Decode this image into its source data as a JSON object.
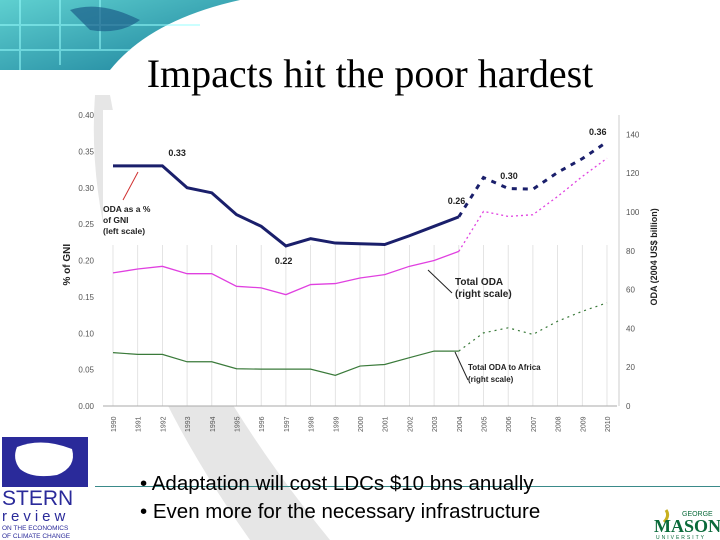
{
  "slide": {
    "title": "Impacts hit the poor hardest",
    "bullets": [
      "Adaptation will cost LDCs $10 bns anually",
      "Even more for the necessary infrastructure"
    ],
    "logos": {
      "left": "STERN review ON THE ECONOMICS OF CLIMATE CHANGE",
      "right": "GEORGE MASON UNIVERSITY"
    }
  },
  "chart_data": {
    "type": "line",
    "x": [
      1990,
      1991,
      1992,
      1993,
      1994,
      1995,
      1996,
      1997,
      1998,
      1999,
      2000,
      2001,
      2002,
      2003,
      2004,
      2005,
      2006,
      2007,
      2008,
      2009,
      2010
    ],
    "x_tick_labels": [
      "1990",
      "1991",
      "1992",
      "1993",
      "1994",
      "1995",
      "1996",
      "1997",
      "1998",
      "1999",
      "2000",
      "2001",
      "2002",
      "2003",
      "2004",
      "2005",
      "2006",
      "2007",
      "2008",
      "2009",
      "2010"
    ],
    "ylabel_left": "% of GNI",
    "ylabel_right": "ODA (2004 US$ billion)",
    "ylim_left": [
      0,
      0.4
    ],
    "ylim_right": [
      0,
      150
    ],
    "yticks_left": [
      "0.00",
      "0.05",
      "0.10",
      "0.15",
      "0.20",
      "0.25",
      "0.30",
      "0.35",
      "0.40"
    ],
    "yticks_right": [
      "0",
      "20",
      "40",
      "60",
      "80",
      "100",
      "120",
      "140"
    ],
    "grid": "vertical",
    "projection_from": 2004,
    "series": [
      {
        "name": "ODA as a % of GNI (left scale)",
        "axis": "left",
        "color": "#1a1f6b",
        "values": [
          0.33,
          0.33,
          0.33,
          0.3,
          0.293,
          0.263,
          0.247,
          0.22,
          0.23,
          0.224,
          0.223,
          0.222,
          0.234,
          0.247,
          0.26,
          0.314,
          0.299,
          0.298,
          0.321,
          0.34,
          0.363
        ]
      },
      {
        "name": "Total ODA (right scale)",
        "axis": "right",
        "color": "#e040e0",
        "values": [
          68.6,
          70.6,
          72,
          68.2,
          68.2,
          61.7,
          60.9,
          57.4,
          62.6,
          63.1,
          66,
          67.7,
          72,
          75,
          79.7,
          100.3,
          97.7,
          98.6,
          108,
          118.3,
          127.7
        ]
      },
      {
        "name": "Total ODA to Africa (right scale)",
        "axis": "right",
        "color": "#3a7a3a",
        "values": [
          27.5,
          26.6,
          26.6,
          22.8,
          22.8,
          19.2,
          19,
          19,
          19,
          15.8,
          20.6,
          21.4,
          24.9,
          28.3,
          28.3,
          37.7,
          40.3,
          36.9,
          43.7,
          48.8,
          53.2
        ]
      }
    ],
    "data_labels": [
      {
        "text": "0.33",
        "year": 1992,
        "value": 0.33
      },
      {
        "text": "0.22",
        "year": 1997,
        "value": 0.22
      },
      {
        "text": "0.26",
        "year": 2004,
        "value": 0.26
      },
      {
        "text": "0.30",
        "year": 2006,
        "value": 0.3
      },
      {
        "text": "0.36",
        "year": 2010,
        "value": 0.36
      }
    ],
    "annotations": [
      [
        "ODA as a %",
        "of GNI",
        "(left scale)"
      ],
      [
        "Total ODA",
        "(right scale)"
      ],
      [
        "Total ODA to Africa",
        "(right scale)"
      ]
    ]
  }
}
